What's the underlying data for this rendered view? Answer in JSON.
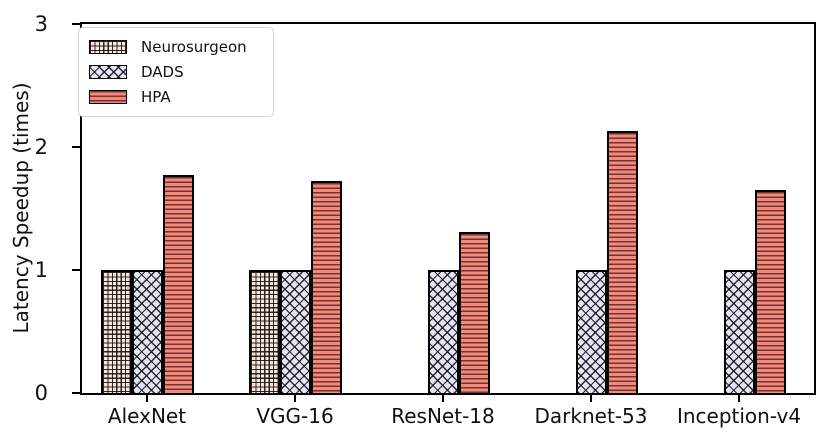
{
  "chart_data": {
    "type": "bar",
    "title": "",
    "ylabel": "Latency Speedup (times)",
    "xlabel": "",
    "categories": [
      "AlexNet",
      "VGG-16",
      "ResNet-18",
      "Darknet-53",
      "Inception-v4"
    ],
    "series": [
      {
        "name": "Neurosurgeon",
        "values": [
          1.0,
          1.0,
          null,
          null,
          null
        ],
        "fill": "#fae3da",
        "hatch": "grid"
      },
      {
        "name": "DADS",
        "values": [
          1.0,
          1.0,
          1.0,
          1.0,
          1.0
        ],
        "fill": "#e4e4f6",
        "hatch": "xhatch"
      },
      {
        "name": "HPA",
        "values": [
          1.77,
          1.72,
          1.31,
          2.13,
          1.65
        ],
        "fill": "#f4897c",
        "hatch": "hlines"
      }
    ],
    "yticks": [
      0,
      1,
      2,
      3
    ],
    "ylim": [
      0,
      3
    ],
    "grid": false,
    "legend_position": "upper-left",
    "edge_color": "#000000",
    "text_color": "#111111"
  }
}
